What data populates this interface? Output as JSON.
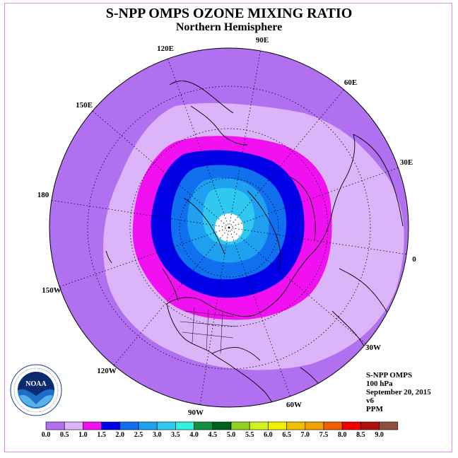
{
  "title": "S-NPP OMPS OZONE MIXING RATIO",
  "subtitle": "Northern Hemisphere",
  "info": {
    "instrument": "S-NPP OMPS",
    "level": "100 hPa",
    "date": "September 20, 2015",
    "version": "v6",
    "units": "PPM"
  },
  "logo_text": "NOAA",
  "longitude_labels": [
    "90E",
    "60E",
    "30E",
    "0",
    "30W",
    "60W",
    "90W",
    "120W",
    "150W",
    "180",
    "150E",
    "120E"
  ],
  "colorbar": {
    "colors": [
      "#b070f0",
      "#dcb4fa",
      "#f010f0",
      "#0000e6",
      "#1070f0",
      "#20a0f0",
      "#30c8f0",
      "#30f0e0",
      "#109040",
      "#006020",
      "#90d020",
      "#d0f020",
      "#f0f000",
      "#f0c000",
      "#f0a000",
      "#f06000",
      "#f00000",
      "#b01010",
      "#905040"
    ],
    "tick_labels": [
      "0.0",
      "0.5",
      "1.0",
      "1.5",
      "2.0",
      "2.5",
      "3.0",
      "3.5",
      "4.0",
      "4.5",
      "5.0",
      "5.5",
      "6.0",
      "6.5",
      "7.0",
      "7.5",
      "8.0",
      "8.5",
      "9.0"
    ]
  },
  "field_colors": {
    "ocean_background": "#b070f0",
    "band_0_5_1_0": "#dcb4fa",
    "band_1_0_1_5": "#f010f0",
    "band_1_5_2_0": "#0000e6",
    "band_2_0_2_5": "#1070f0",
    "band_2_5_3_0": "#20a0f0",
    "band_3_0_3_5": "#30c8f0",
    "pole_missing": "#ffffff"
  }
}
